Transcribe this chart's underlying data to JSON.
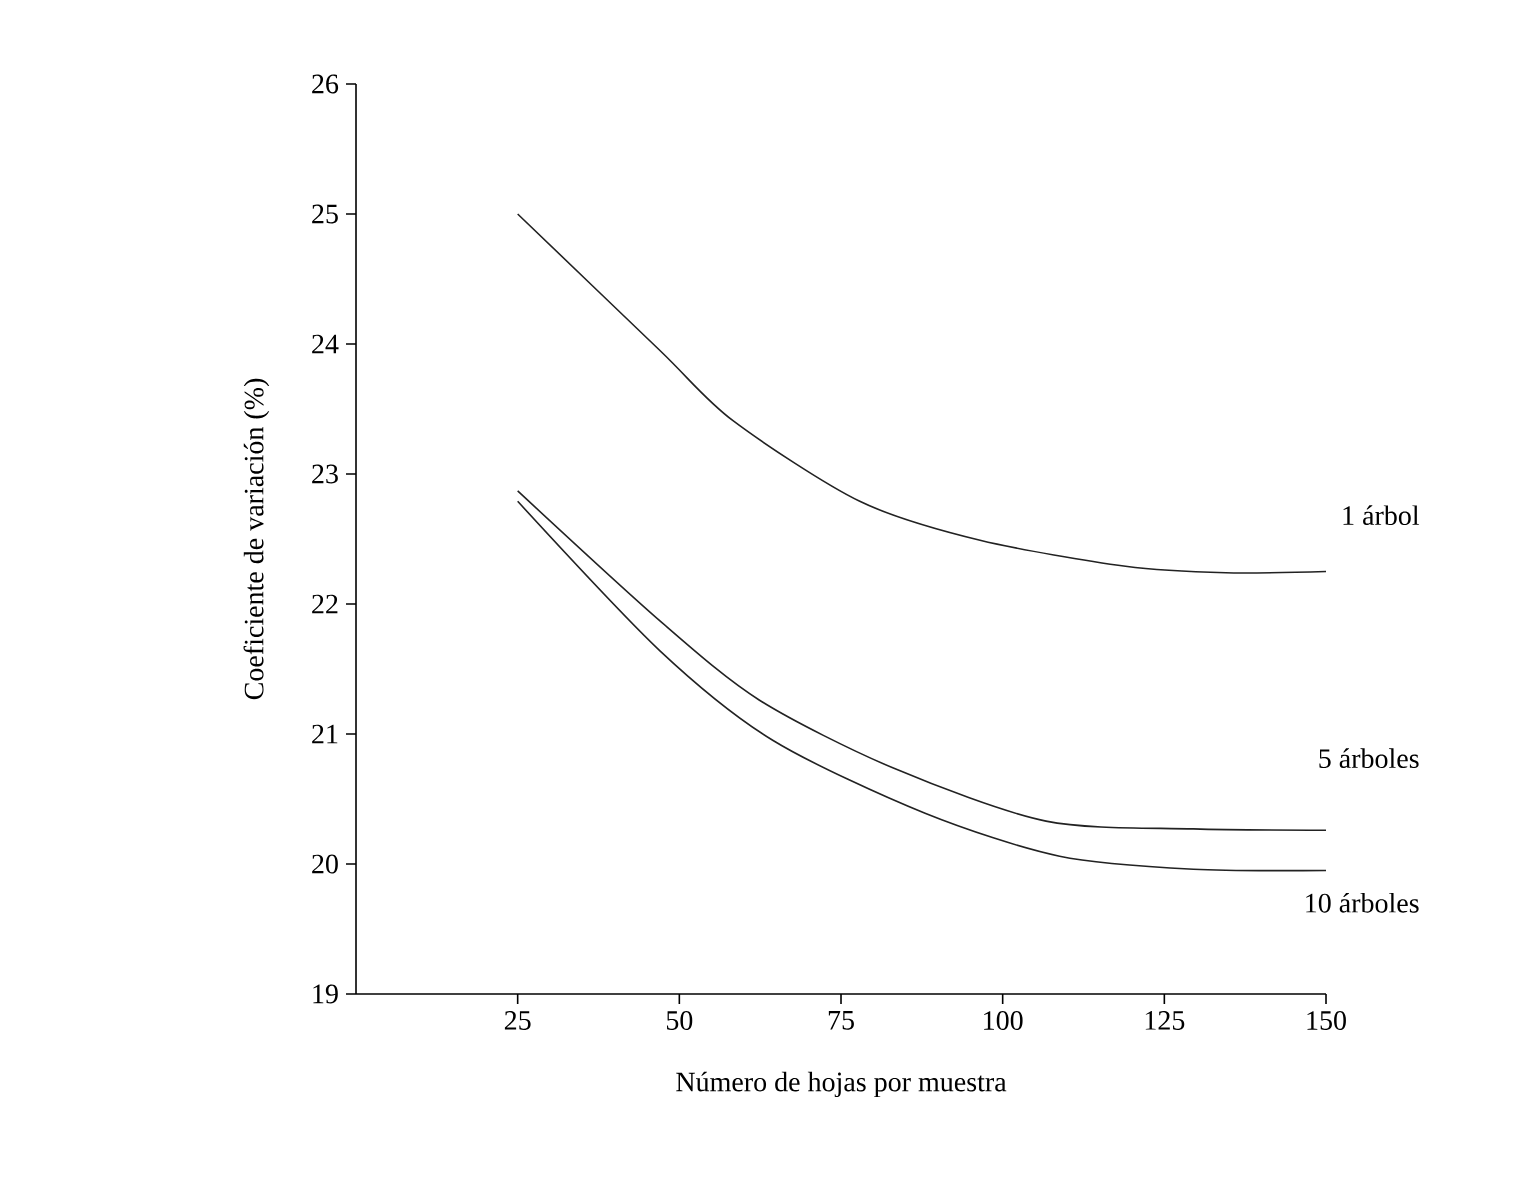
{
  "chart_data": {
    "type": "line",
    "xlabel": "Número de hojas por muestra",
    "ylabel": "Coeficiente de variación (%)",
    "xlim": [
      0,
      150
    ],
    "ylim": [
      19,
      26
    ],
    "xticks": [
      25,
      50,
      75,
      100,
      125,
      150
    ],
    "yticks": [
      19,
      20,
      21,
      22,
      23,
      24,
      25,
      26
    ],
    "grid": false,
    "legend": false,
    "marker": "none",
    "line_style": "solid",
    "series": [
      {
        "name": "1 árbol",
        "color": "#222222",
        "x": [
          25,
          47,
          58.3,
          77.9,
          96.5,
          119,
          134.5,
          150
        ],
        "values": [
          25.0,
          23.95,
          23.41,
          22.79,
          22.49,
          22.29,
          22.24,
          22.25
        ]
      },
      {
        "name": "5 árboles",
        "color": "#222222",
        "x": [
          25,
          47,
          62.4,
          83,
          106.7,
          129.5,
          150
        ],
        "values": [
          22.87,
          21.87,
          21.26,
          20.74,
          20.33,
          20.27,
          20.26
        ]
      },
      {
        "name": "10 árboles",
        "color": "#222222",
        "x": [
          25,
          47,
          64.5,
          88,
          108.8,
          129.5,
          150
        ],
        "values": [
          22.79,
          21.64,
          20.95,
          20.39,
          20.06,
          19.96,
          19.95
        ]
      }
    ]
  }
}
